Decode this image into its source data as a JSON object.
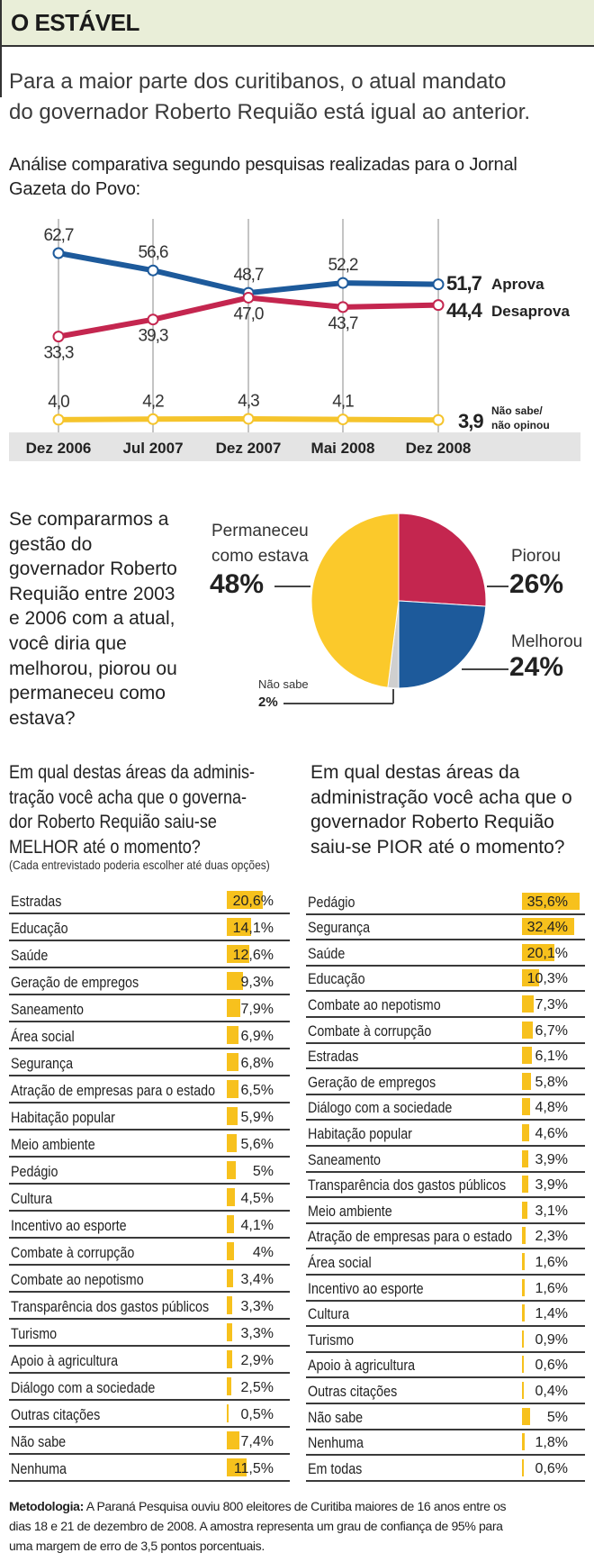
{
  "header": {
    "title": "O ESTÁVEL"
  },
  "subtitle": [
    "Para a maior parte dos curitibanos, o atual mandato",
    "do governador Roberto Requião está igual ao anterior."
  ],
  "chart_heading": [
    "Análise comparativa segundo pesquisas realizadas para o Jornal",
    "Gazeta do Povo:"
  ],
  "chart_data": [
    {
      "type": "line",
      "categories": [
        "Dez 2006",
        "Jul 2007",
        "Dez 2007",
        "Mai 2008",
        "Dez 2008"
      ],
      "grid": "vertical",
      "series": [
        {
          "name": "Aprova",
          "values": [
            62.7,
            56.6,
            48.7,
            52.2,
            51.7
          ],
          "labels": [
            "62,7",
            "56,6",
            "48,7",
            "52,2",
            "51,7"
          ],
          "color": "#1d5a9b"
        },
        {
          "name": "Desaprova",
          "values": [
            33.3,
            39.3,
            47.0,
            43.7,
            44.4
          ],
          "labels": [
            "33,3",
            "39,3",
            "47,0",
            "43,7",
            "44,4"
          ],
          "color": "#c4264f"
        },
        {
          "name": "Não sabe/ não opinou",
          "name_lines": [
            "Não sabe/",
            "não opinou"
          ],
          "values": [
            4.0,
            4.2,
            4.3,
            4.1,
            3.9
          ],
          "labels": [
            "4,0",
            "4,2",
            "4,3",
            "4,1",
            "3,9"
          ],
          "color": "#f5c42c"
        }
      ]
    },
    {
      "type": "pie",
      "question": [
        "Se compararmos a",
        "gestão do",
        "governador Roberto",
        "Requião entre 2003",
        "e 2006 com a atual,",
        "você diria que",
        "melhorou, piorou ou",
        "permaneceu como",
        "estava?"
      ],
      "slices": [
        {
          "label": [
            "Piorou"
          ],
          "value": 26,
          "display": "26%",
          "color": "#c4264f"
        },
        {
          "label": [
            "Melhorou"
          ],
          "value": 24,
          "display": "24%",
          "color": "#1d5a9b"
        },
        {
          "label": [
            "Não sabe"
          ],
          "value": 2,
          "display": "2%",
          "color": "#cfcfcf"
        },
        {
          "label": [
            "Permaneceu",
            "como estava"
          ],
          "value": 48,
          "display": "48%",
          "color": "#fbc92b"
        }
      ]
    },
    {
      "type": "bar",
      "orientation": "horizontal",
      "question": [
        "Em qual destas áreas da adminis-",
        "tração você acha que o governa-",
        "dor Roberto Requião saiu-se",
        "MELHOR até o momento?"
      ],
      "note": "(Cada entrevistado poderia escolher até duas opções)",
      "categories": [
        "Estradas",
        "Educação",
        "Saúde",
        "Geração de empregos",
        "Saneamento",
        "Área social",
        "Segurança",
        "Atração de empresas para o estado",
        "Habitação popular",
        "Meio ambiente",
        "Pedágio",
        "Cultura",
        "Incentivo ao esporte",
        "Combate à corrupção",
        "Combate ao nepotismo",
        "Transparência dos gastos públicos",
        "Turismo",
        "Apoio à agricultura",
        "Diálogo com a sociedade",
        "Outras citações",
        "Não sabe",
        "Nenhuma"
      ],
      "values": [
        20.6,
        14.1,
        12.6,
        9.3,
        7.9,
        6.9,
        6.8,
        6.5,
        5.9,
        5.6,
        5,
        4.5,
        4.1,
        4,
        3.4,
        3.3,
        3.3,
        2.9,
        2.5,
        0.5,
        7.4,
        11.5
      ],
      "labels": [
        "20,6%",
        "14,1%",
        "12,6%",
        "9,3%",
        "7,9%",
        "6,9%",
        "6,8%",
        "6,5%",
        "5,9%",
        "5,6%",
        "5%",
        "4,5%",
        "4,1%",
        "4%",
        "3,4%",
        "3,3%",
        "3,3%",
        "2,9%",
        "2,5%",
        "0,5%",
        "7,4%",
        "11,5%"
      ],
      "color": "#f7c11d"
    },
    {
      "type": "bar",
      "orientation": "horizontal",
      "question": [
        "Em qual destas áreas da",
        "administração você acha que o",
        "governador Roberto Requião",
        "saiu-se PIOR até o momento?"
      ],
      "categories": [
        "Pedágio",
        "Segurança",
        "Saúde",
        "Educação",
        "Combate ao nepotismo",
        "Combate à corrupção",
        "Estradas",
        "Geração de empregos",
        "Diálogo com a sociedade",
        "Habitação popular",
        "Saneamento",
        "Transparência dos gastos públicos",
        "Meio ambiente",
        "Atração de empresas para o estado",
        "Área social",
        "Incentivo ao esporte",
        "Cultura",
        "Turismo",
        "Apoio à agricultura",
        "Outras citações",
        "Não sabe",
        "Nenhuma",
        "Em todas"
      ],
      "values": [
        35.6,
        32.4,
        20.1,
        10.3,
        7.3,
        6.7,
        6.1,
        5.8,
        4.8,
        4.6,
        3.9,
        3.9,
        3.1,
        2.3,
        1.6,
        1.6,
        1.4,
        0.9,
        0.6,
        0.4,
        5,
        1.8,
        0.6
      ],
      "labels": [
        "35,6%",
        "32,4%",
        "20,1%",
        "10,3%",
        "7,3%",
        "6,7%",
        "6,1%",
        "5,8%",
        "4,8%",
        "4,6%",
        "3,9%",
        "3,9%",
        "3,1%",
        "2,3%",
        "1,6%",
        "1,6%",
        "1,4%",
        "0,9%",
        "0,6%",
        "0,4%",
        "5%",
        "1,8%",
        "0,6%"
      ],
      "color": "#f7c11d"
    }
  ],
  "methodology": {
    "label": "Metodologia:",
    "lines": [
      "A Paraná Pesquisa ouviu 800 eleitores de Curitiba maiores de 16 anos entre os",
      "dias 18 e 21 de dezembro de 2008. A amostra representa um grau de confiança de 95% para",
      "uma margem de erro de 3,5 pontos porcentuais."
    ]
  }
}
